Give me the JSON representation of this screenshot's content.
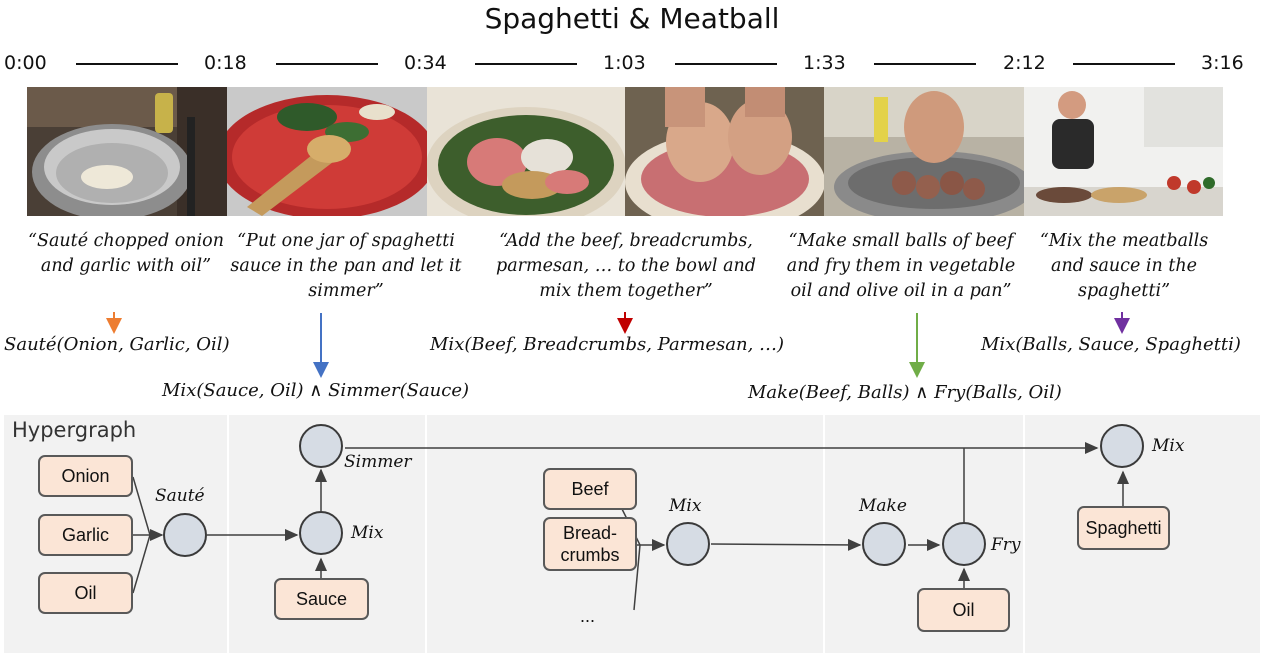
{
  "title": "Spaghetti & Meatball",
  "timeline": {
    "timestamps": [
      "0:00",
      "0:18",
      "0:34",
      "1:03",
      "1:33",
      "2:12",
      "3:16"
    ]
  },
  "frames": [
    {
      "scene": "saute-pan"
    },
    {
      "scene": "sauce-pan"
    },
    {
      "scene": "mixing-bowl"
    },
    {
      "scene": "hands-mixing"
    },
    {
      "scene": "frying-balls"
    },
    {
      "scene": "chef-kitchen"
    }
  ],
  "captions": [
    "“Sauté chopped onion and garlic with oil”",
    "“Put one jar of spaghetti sauce in the pan and let it simmer”",
    "“Add the beef, breadcrumbs, parmesan, … to the bowl and mix them together”",
    "“Make small balls of beef and fry them in vegetable oil and olive oil in a pan”",
    "“Mix the meatballs and sauce in the spaghetti”"
  ],
  "formulas": {
    "saute": "Sauté(Onion, Garlic, Oil)",
    "mix_simmer": "Mix(Sauce, Oil) ∧ Simmer(Sauce)",
    "mix_beef": "Mix(Beef, Breadcrumbs, Parmesan, …)",
    "make_fry": "Make(Beef, Balls) ∧ Fry(Balls, Oil)",
    "mix_final": "Mix(Balls, Sauce, Spaghetti)"
  },
  "arrow_colors": {
    "orange": "#ed7d31",
    "blue": "#4472c4",
    "red": "#c00000",
    "green": "#70ad47",
    "purple": "#7030a0"
  },
  "hypergraph": {
    "label": "Hypergraph",
    "entities": {
      "onion": "Onion",
      "garlic": "Garlic",
      "oil1": "Oil",
      "sauce": "Sauce",
      "beef": "Beef",
      "breadcrumbs": "Bread-\ncrumbs",
      "ellipsis": "...",
      "oil2": "Oil",
      "spaghetti": "Spaghetti"
    },
    "actions": {
      "saute": "Sauté",
      "simmer": "Simmer",
      "mix1": "Mix",
      "mix2": "Mix",
      "make": "Make",
      "fry": "Fry",
      "mix3": "Mix"
    },
    "colors": {
      "entity_fill": "#fbe5d6",
      "node_fill": "#d6dce4",
      "panel": "#f2f2f2"
    }
  }
}
